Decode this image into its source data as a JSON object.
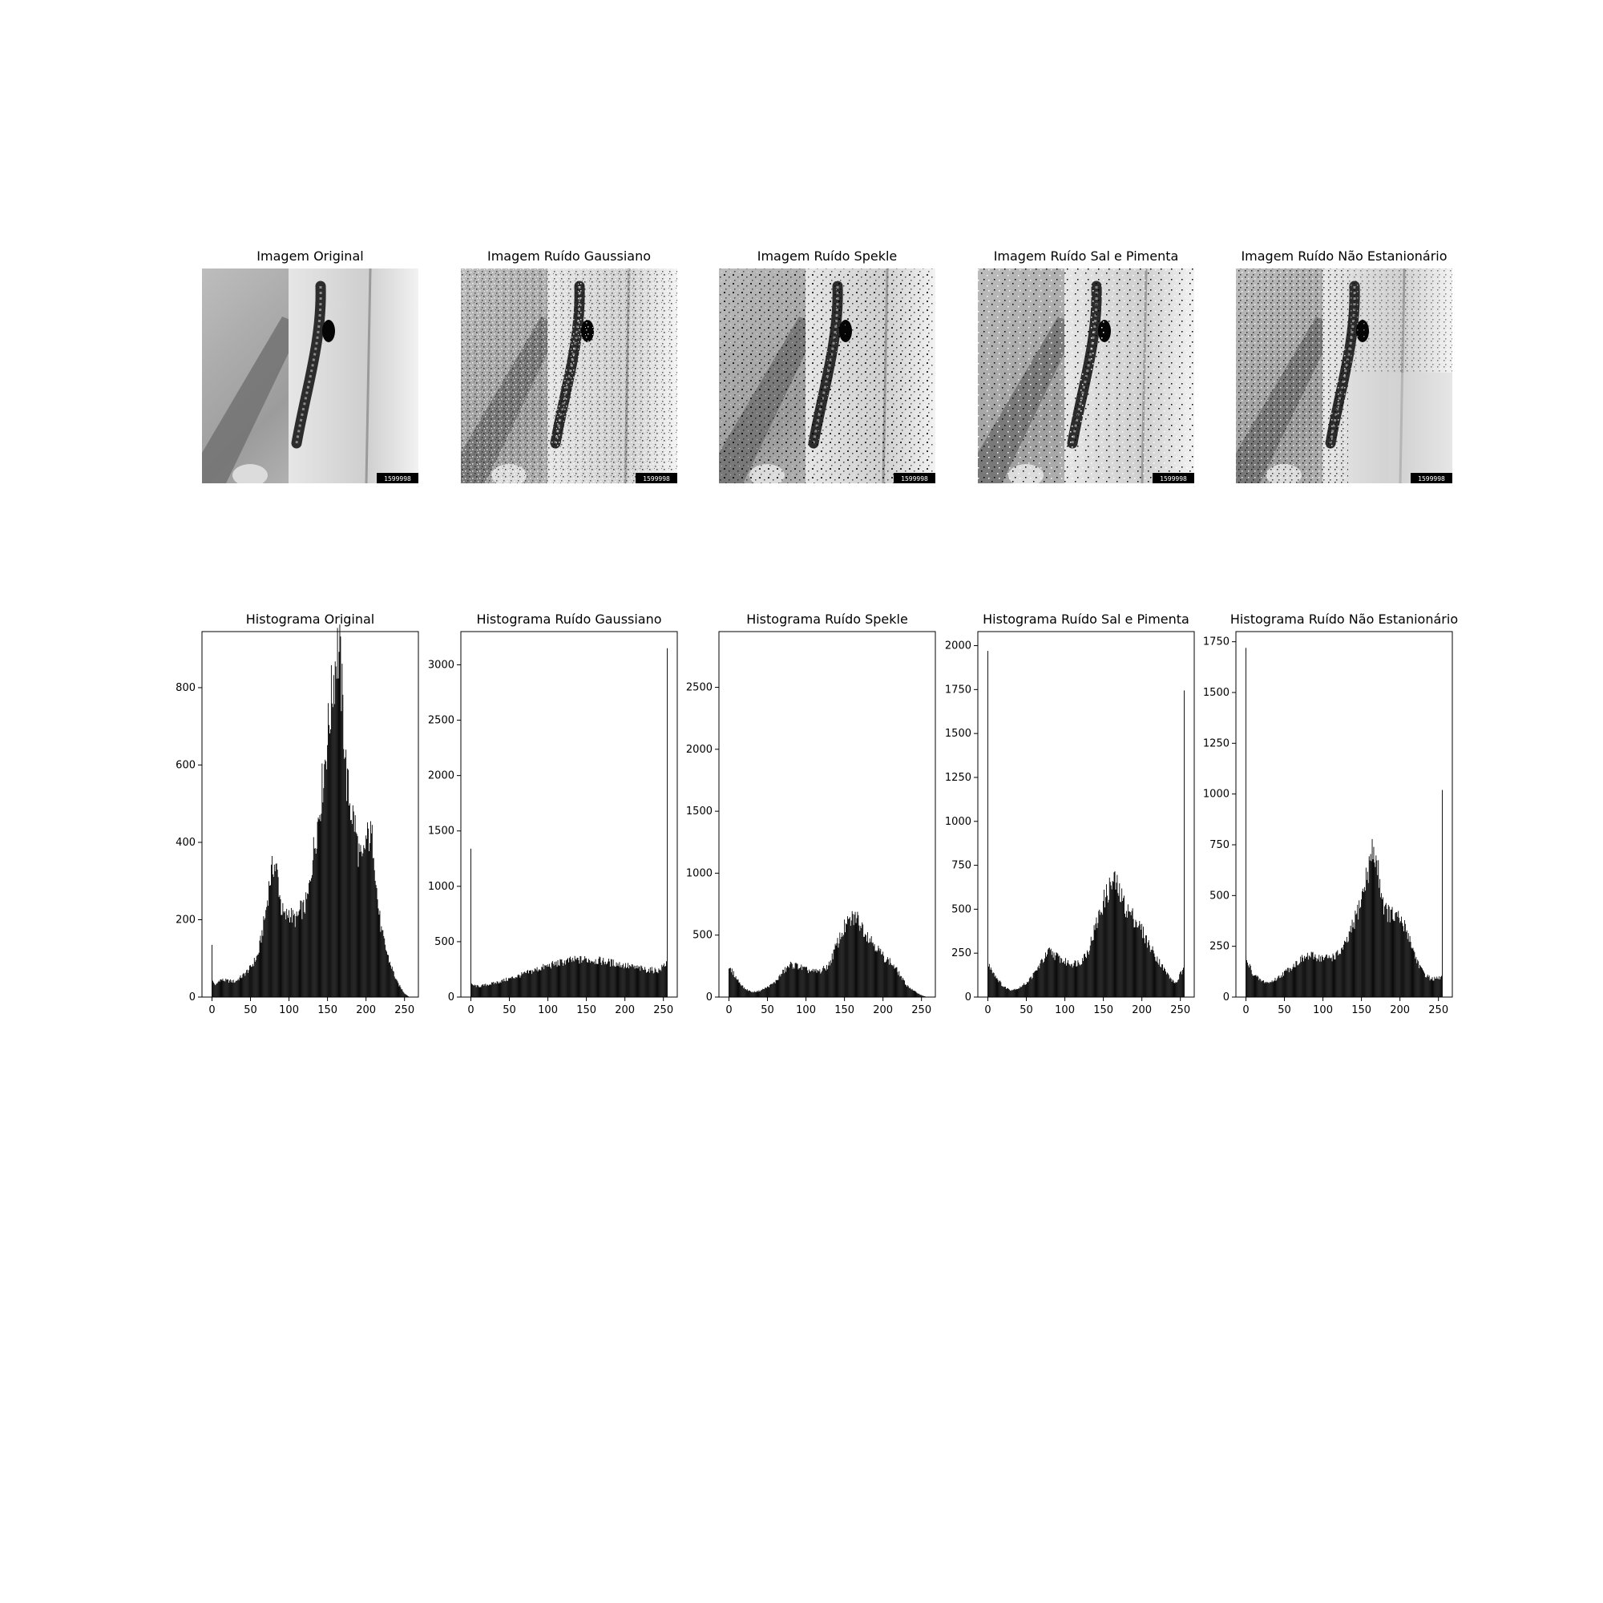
{
  "image_panels": [
    {
      "title": "Imagem Original",
      "tag": "1599998",
      "noise": "none"
    },
    {
      "title": "Imagem Ruído Gaussiano",
      "tag": "1599998",
      "noise": "gaussian"
    },
    {
      "title": "Imagem Ruído Spekle",
      "tag": "1599998",
      "noise": "speckle"
    },
    {
      "title": "Imagem Ruído Sal e Pimenta",
      "tag": "1599998",
      "noise": "salt-pepper"
    },
    {
      "title": "Imagem Ruído Não Estanionário",
      "tag": "1599998",
      "noise": "non-stationary"
    }
  ],
  "colors": {
    "bars": "#000000",
    "axes": "#000000",
    "background": "#ffffff"
  },
  "chart_data": [
    {
      "type": "bar",
      "title": "Histograma Original",
      "xlabel": "",
      "ylabel": "",
      "xlim": [
        -13,
        268
      ],
      "ylim": [
        0,
        945
      ],
      "xticks": [
        0,
        50,
        100,
        150,
        200,
        250
      ],
      "yticks": [
        0,
        200,
        400,
        600,
        800
      ],
      "profile": [
        [
          0,
          135
        ],
        [
          1,
          40
        ],
        [
          5,
          30
        ],
        [
          10,
          45
        ],
        [
          20,
          42
        ],
        [
          30,
          40
        ],
        [
          40,
          55
        ],
        [
          50,
          75
        ],
        [
          60,
          110
        ],
        [
          70,
          220
        ],
        [
          75,
          300
        ],
        [
          80,
          345
        ],
        [
          85,
          320
        ],
        [
          90,
          230
        ],
        [
          95,
          205
        ],
        [
          100,
          220
        ],
        [
          105,
          205
        ],
        [
          110,
          200
        ],
        [
          115,
          225
        ],
        [
          120,
          230
        ],
        [
          125,
          260
        ],
        [
          130,
          350
        ],
        [
          140,
          490
        ],
        [
          150,
          670
        ],
        [
          157,
          810
        ],
        [
          162,
          900
        ],
        [
          166,
          880
        ],
        [
          170,
          740
        ],
        [
          175,
          560
        ],
        [
          180,
          490
        ],
        [
          185,
          455
        ],
        [
          190,
          380
        ],
        [
          195,
          340
        ],
        [
          200,
          405
        ],
        [
          205,
          420
        ],
        [
          210,
          395
        ],
        [
          215,
          250
        ],
        [
          220,
          170
        ],
        [
          230,
          95
        ],
        [
          240,
          40
        ],
        [
          250,
          10
        ],
        [
          255,
          2
        ]
      ]
    },
    {
      "type": "bar",
      "title": "Histograma Ruído Gaussiano",
      "xlabel": "",
      "ylabel": "",
      "xlim": [
        -13,
        268
      ],
      "ylim": [
        0,
        3300
      ],
      "xticks": [
        0,
        50,
        100,
        150,
        200,
        250
      ],
      "yticks": [
        0,
        500,
        1000,
        1500,
        2000,
        2500,
        3000
      ],
      "profile": [
        [
          0,
          1340
        ],
        [
          1,
          110
        ],
        [
          10,
          95
        ],
        [
          30,
          125
        ],
        [
          50,
          165
        ],
        [
          70,
          210
        ],
        [
          90,
          260
        ],
        [
          110,
          300
        ],
        [
          130,
          330
        ],
        [
          150,
          340
        ],
        [
          170,
          325
        ],
        [
          190,
          300
        ],
        [
          210,
          270
        ],
        [
          230,
          245
        ],
        [
          245,
          240
        ],
        [
          250,
          280
        ],
        [
          254,
          310
        ],
        [
          255,
          3150
        ]
      ]
    },
    {
      "type": "bar",
      "title": "Histograma Ruído Spekle",
      "xlabel": "",
      "ylabel": "",
      "xlim": [
        -13,
        268
      ],
      "ylim": [
        0,
        2950
      ],
      "xticks": [
        0,
        50,
        100,
        150,
        200,
        250
      ],
      "yticks": [
        0,
        500,
        1000,
        1500,
        2000,
        2500
      ],
      "profile": [
        [
          0,
          230
        ],
        [
          5,
          200
        ],
        [
          10,
          150
        ],
        [
          20,
          70
        ],
        [
          30,
          40
        ],
        [
          40,
          50
        ],
        [
          50,
          80
        ],
        [
          60,
          120
        ],
        [
          70,
          200
        ],
        [
          80,
          260
        ],
        [
          90,
          250
        ],
        [
          100,
          220
        ],
        [
          110,
          205
        ],
        [
          120,
          210
        ],
        [
          130,
          260
        ],
        [
          140,
          420
        ],
        [
          150,
          560
        ],
        [
          160,
          630
        ],
        [
          165,
          650
        ],
        [
          170,
          600
        ],
        [
          180,
          500
        ],
        [
          190,
          420
        ],
        [
          200,
          330
        ],
        [
          210,
          280
        ],
        [
          220,
          200
        ],
        [
          230,
          100
        ],
        [
          240,
          50
        ],
        [
          250,
          15
        ],
        [
          255,
          5
        ]
      ]
    },
    {
      "type": "bar",
      "title": "Histograma Ruído Sal e Pimenta",
      "xlabel": "",
      "ylabel": "",
      "xlim": [
        -13,
        268
      ],
      "ylim": [
        0,
        2080
      ],
      "xticks": [
        0,
        50,
        100,
        150,
        200,
        250
      ],
      "yticks": [
        0,
        250,
        500,
        750,
        1000,
        1250,
        1500,
        1750,
        2000
      ],
      "profile": [
        [
          0,
          1970
        ],
        [
          1,
          180
        ],
        [
          5,
          160
        ],
        [
          10,
          120
        ],
        [
          20,
          60
        ],
        [
          30,
          40
        ],
        [
          40,
          50
        ],
        [
          50,
          80
        ],
        [
          60,
          130
        ],
        [
          70,
          200
        ],
        [
          80,
          260
        ],
        [
          90,
          230
        ],
        [
          100,
          200
        ],
        [
          110,
          190
        ],
        [
          120,
          200
        ],
        [
          130,
          260
        ],
        [
          140,
          400
        ],
        [
          150,
          540
        ],
        [
          160,
          640
        ],
        [
          165,
          660
        ],
        [
          170,
          600
        ],
        [
          180,
          500
        ],
        [
          190,
          450
        ],
        [
          200,
          380
        ],
        [
          210,
          290
        ],
        [
          220,
          220
        ],
        [
          230,
          150
        ],
        [
          240,
          90
        ],
        [
          245,
          80
        ],
        [
          250,
          130
        ],
        [
          254,
          150
        ],
        [
          255,
          1745
        ]
      ]
    },
    {
      "type": "bar",
      "title": "Histograma Ruído Não Estanionário",
      "xlabel": "",
      "ylabel": "",
      "xlim": [
        -13,
        268
      ],
      "ylim": [
        0,
        1800
      ],
      "xticks": [
        0,
        50,
        100,
        150,
        200,
        250
      ],
      "yticks": [
        0,
        250,
        500,
        750,
        1000,
        1250,
        1500,
        1750
      ],
      "profile": [
        [
          0,
          1720
        ],
        [
          1,
          170
        ],
        [
          5,
          150
        ],
        [
          10,
          110
        ],
        [
          20,
          80
        ],
        [
          30,
          70
        ],
        [
          40,
          90
        ],
        [
          50,
          120
        ],
        [
          60,
          150
        ],
        [
          70,
          180
        ],
        [
          80,
          200
        ],
        [
          90,
          200
        ],
        [
          100,
          190
        ],
        [
          110,
          195
        ],
        [
          120,
          210
        ],
        [
          130,
          260
        ],
        [
          140,
          360
        ],
        [
          150,
          480
        ],
        [
          160,
          650
        ],
        [
          165,
          720
        ],
        [
          170,
          660
        ],
        [
          180,
          430
        ],
        [
          190,
          400
        ],
        [
          200,
          380
        ],
        [
          210,
          320
        ],
        [
          220,
          200
        ],
        [
          230,
          120
        ],
        [
          240,
          90
        ],
        [
          250,
          90
        ],
        [
          254,
          100
        ],
        [
          255,
          1020
        ]
      ]
    }
  ]
}
